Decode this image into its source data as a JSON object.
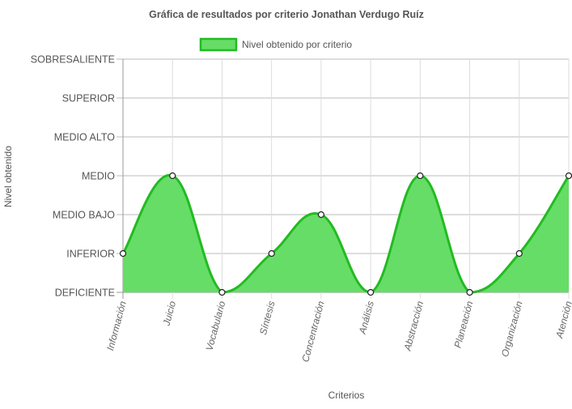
{
  "chart_data": {
    "type": "area",
    "title": "Gráfica de resultados por criterio Jonathan Verdugo Ruíz",
    "xlabel": "Criterios",
    "ylabel": "Nivel obtenido",
    "categories": [
      "Información",
      "Juicio",
      "Vocabulario",
      "Síntesis",
      "Concentración",
      "Análisis",
      "Abstracción",
      "Planeación",
      "Organización",
      "Atención"
    ],
    "y_levels": [
      "DEFICIENTE",
      "INFERIOR",
      "MEDIO BAJO",
      "MEDIO",
      "MEDIO ALTO",
      "SUPERIOR",
      "SOBRESALIENTE"
    ],
    "ylim": [
      0,
      6
    ],
    "grid": true,
    "legend_position": "top",
    "series": [
      {
        "name": "Nivel obtenido por criterio",
        "values": [
          1,
          3,
          0,
          1,
          2,
          0,
          3,
          0,
          1,
          3
        ],
        "value_labels": [
          "INFERIOR",
          "MEDIO",
          "DEFICIENTE",
          "INFERIOR",
          "MEDIO BAJO",
          "DEFICIENTE",
          "MEDIO",
          "DEFICIENTE",
          "INFERIOR",
          "MEDIO"
        ],
        "fill_color": "#66dd66",
        "line_color": "#22bb22"
      }
    ]
  }
}
